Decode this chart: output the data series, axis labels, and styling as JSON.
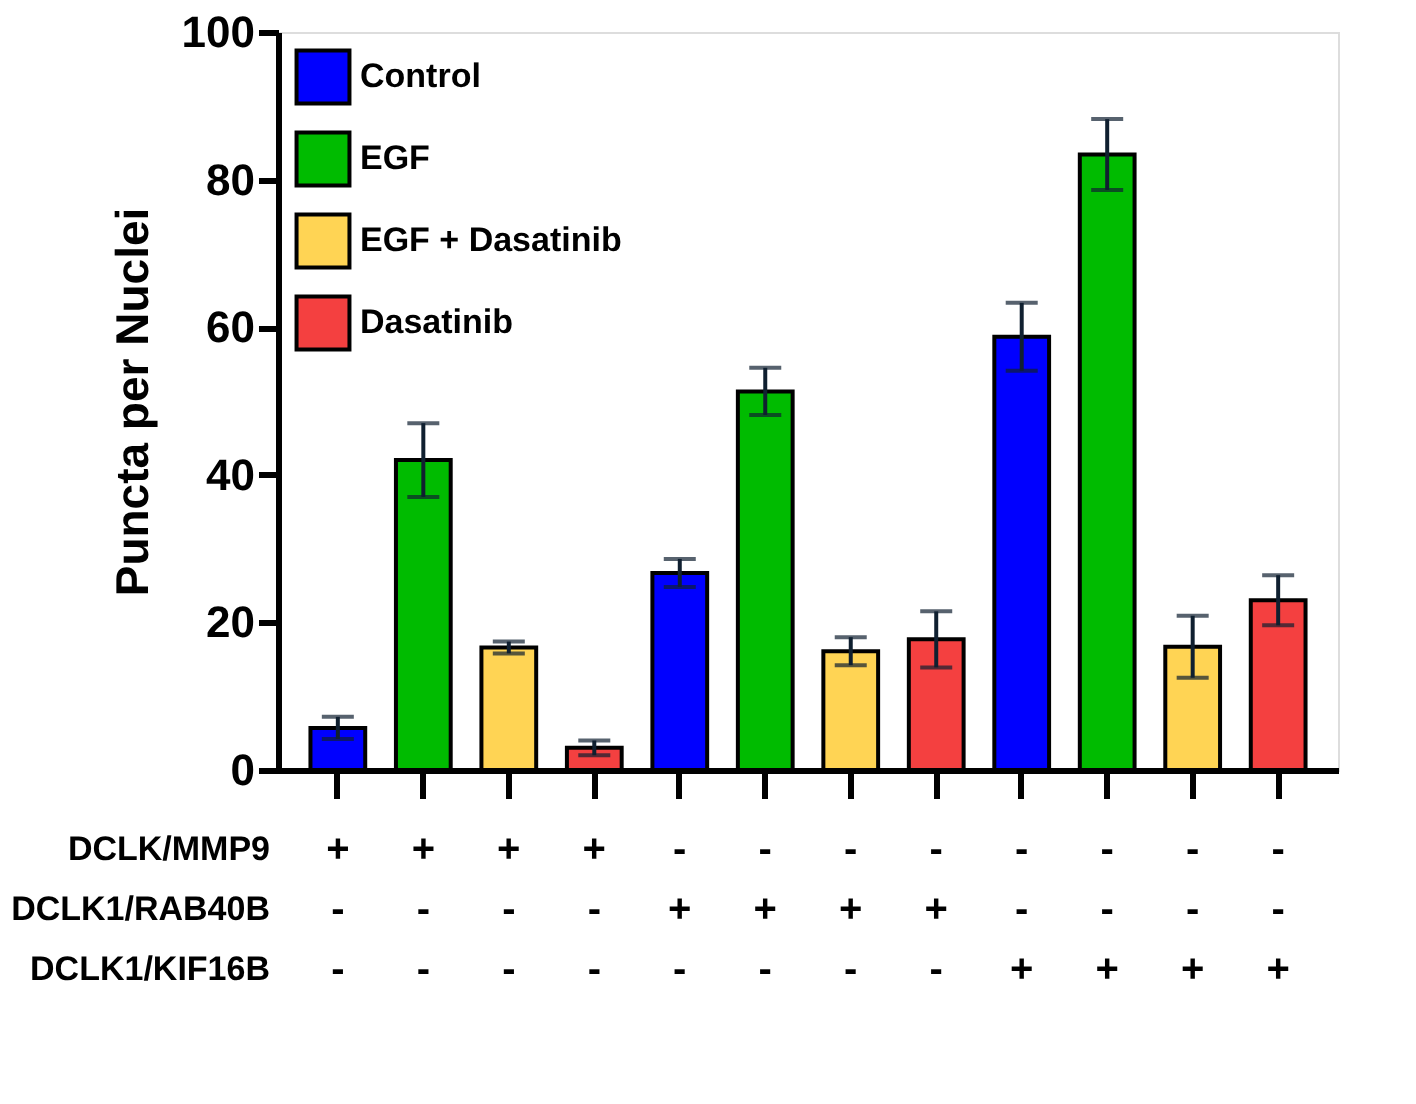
{
  "chart_data": {
    "type": "bar",
    "ylabel": "Puncta per Nuclei",
    "categories": [
      "+\n-\n-",
      "+\n-\n-",
      "+\n-\n-",
      "+\n-\n-",
      "-\n+\n-",
      "-\n+\n-",
      "-\n+\n-",
      "-\n+\n-",
      "-\n-\n+",
      "-\n-\n+",
      "-\n-\n+",
      "-\n-\n+"
    ],
    "series": [
      {
        "name": "Control",
        "color": "#0000ff",
        "values": [
          5.7,
          null,
          null,
          null,
          26.7,
          null,
          null,
          null,
          58.7,
          null,
          null,
          null
        ],
        "errors": [
          1.5,
          null,
          null,
          null,
          1.9,
          null,
          null,
          null,
          4.6,
          null,
          null,
          null
        ]
      },
      {
        "name": "EGF",
        "color": "#00bb00",
        "values": [
          null,
          42.0,
          null,
          null,
          null,
          51.3,
          null,
          null,
          null,
          83.4,
          null,
          null
        ],
        "errors": [
          null,
          5.0,
          null,
          null,
          null,
          3.2,
          null,
          null,
          null,
          4.8,
          null,
          null
        ]
      },
      {
        "name": "EGF + Dasatinib",
        "color": "#ffd454",
        "values": [
          null,
          null,
          16.6,
          null,
          null,
          null,
          16.1,
          null,
          null,
          null,
          16.7,
          null
        ],
        "errors": [
          null,
          null,
          0.8,
          null,
          null,
          null,
          1.9,
          null,
          null,
          null,
          4.2,
          null
        ]
      },
      {
        "name": "Dasatinib",
        "color": "#f44040",
        "values": [
          null,
          null,
          null,
          3.0,
          null,
          null,
          null,
          17.7,
          null,
          null,
          null,
          23.0
        ],
        "errors": [
          null,
          null,
          null,
          1.0,
          null,
          null,
          null,
          3.8,
          null,
          null,
          null,
          3.4
        ]
      }
    ],
    "annotations": [
      "DCLK/MMP9",
      "DCLK1/RAB40B",
      "DCLK1/KIF16B"
    ],
    "ylim": [
      0,
      100
    ],
    "yticks": [
      0,
      20,
      40,
      60,
      80,
      100
    ],
    "legend": "top left",
    "grid": false
  }
}
